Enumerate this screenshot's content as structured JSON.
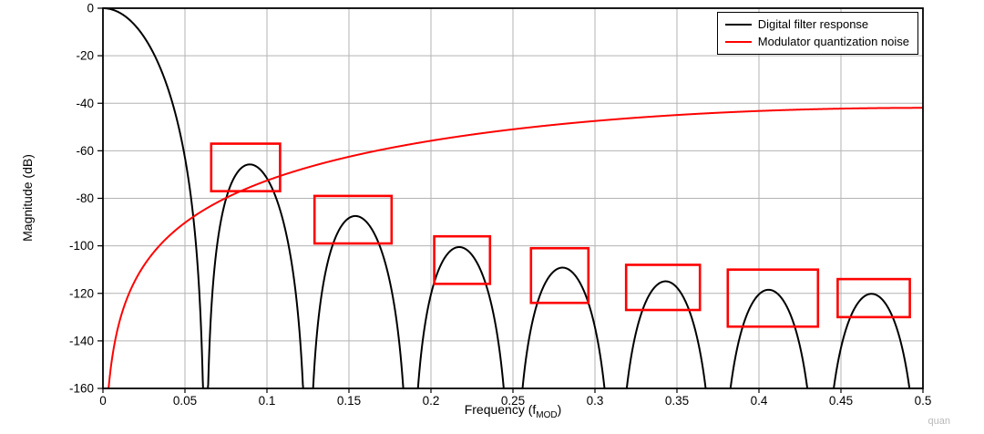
{
  "figure": {
    "watermark": "quan"
  },
  "chart_data": {
    "type": "line",
    "title": "",
    "xlabel": {
      "prefix": "Frequency (f",
      "sub": "MOD",
      "suffix": ")"
    },
    "ylabel": "Magnitude (dB)",
    "xlim": [
      0,
      0.5
    ],
    "ylim": [
      -160,
      0
    ],
    "xticks": [
      0,
      0.05,
      0.1,
      0.15,
      0.2,
      0.25,
      0.3,
      0.35,
      0.4,
      0.45,
      0.5
    ],
    "xtick_labels": [
      "0",
      "0.05",
      "0.1",
      "0.15",
      "0.2",
      "0.25",
      "0.3",
      "0.35",
      "0.4",
      "0.45",
      "0.5"
    ],
    "yticks": [
      0,
      -20,
      -40,
      -60,
      -80,
      -100,
      -120,
      -140,
      -160
    ],
    "ytick_labels": [
      "0",
      "-20",
      "-40",
      "-60",
      "-80",
      "-100",
      "-120",
      "-140",
      "-160"
    ],
    "grid": true,
    "grid_color": "#b3b3b3",
    "frame_color": "#000000",
    "legend_position": "top-right",
    "series": [
      {
        "name": "Digital filter response",
        "color": "#000000",
        "model": "sinc_filter",
        "params": {
          "order": 5,
          "decimation": 16
        },
        "nulls_at_multiples_of": 0.0625,
        "sidelobe_peaks": [
          {
            "f": 0.094,
            "db": -66
          },
          {
            "f": 0.156,
            "db": -88
          },
          {
            "f": 0.219,
            "db": -101
          },
          {
            "f": 0.281,
            "db": -109
          },
          {
            "f": 0.344,
            "db": -115
          },
          {
            "f": 0.406,
            "db": -118
          },
          {
            "f": 0.469,
            "db": -120
          }
        ]
      },
      {
        "name": "Modulator quantization noise",
        "color": "#ff0000",
        "model": "noise_shaping",
        "params": {
          "order": 3,
          "offset_db": -60
        },
        "endpoints": [
          {
            "f": 0.004,
            "db": -160
          },
          {
            "f": 0.5,
            "db": -42
          }
        ]
      }
    ],
    "highlight_color": "#ff0000",
    "highlight_boxes": [
      {
        "f1": 0.066,
        "f2": 0.108,
        "db1": -57,
        "db2": -77
      },
      {
        "f1": 0.129,
        "f2": 0.176,
        "db1": -79,
        "db2": -99
      },
      {
        "f1": 0.202,
        "f2": 0.236,
        "db1": -96,
        "db2": -116
      },
      {
        "f1": 0.261,
        "f2": 0.296,
        "db1": -101,
        "db2": -124
      },
      {
        "f1": 0.319,
        "f2": 0.364,
        "db1": -108,
        "db2": -127
      },
      {
        "f1": 0.381,
        "f2": 0.436,
        "db1": -110,
        "db2": -134
      },
      {
        "f1": 0.448,
        "f2": 0.492,
        "db1": -114,
        "db2": -130
      }
    ]
  }
}
